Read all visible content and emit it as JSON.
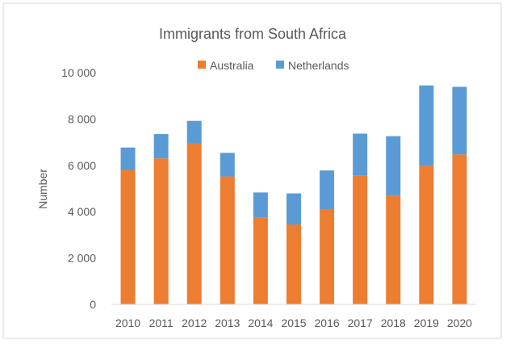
{
  "chart_data": {
    "type": "bar",
    "stacked": true,
    "title": "Immigrants from South Africa",
    "xlabel": "",
    "ylabel": "Number",
    "ylim": [
      0,
      10000
    ],
    "yticks": [
      "0",
      "2 000",
      "4 000",
      "6 000",
      "8 000",
      "10 000"
    ],
    "ytick_values": [
      0,
      2000,
      4000,
      6000,
      8000,
      10000
    ],
    "grid": false,
    "legend_position": "top",
    "categories": [
      "2010",
      "2011",
      "2012",
      "2013",
      "2014",
      "2015",
      "2016",
      "2017",
      "2018",
      "2019",
      "2020"
    ],
    "series": [
      {
        "name": "Australia",
        "color": "#ED7D31",
        "values": [
          5800,
          6300,
          6950,
          5520,
          3750,
          3450,
          4080,
          5570,
          4700,
          5980,
          6470
        ]
      },
      {
        "name": "Netherlands",
        "color": "#5B9BD5",
        "values": [
          970,
          1050,
          970,
          1020,
          1080,
          1340,
          1700,
          1800,
          2560,
          3470,
          2920
        ]
      }
    ]
  }
}
